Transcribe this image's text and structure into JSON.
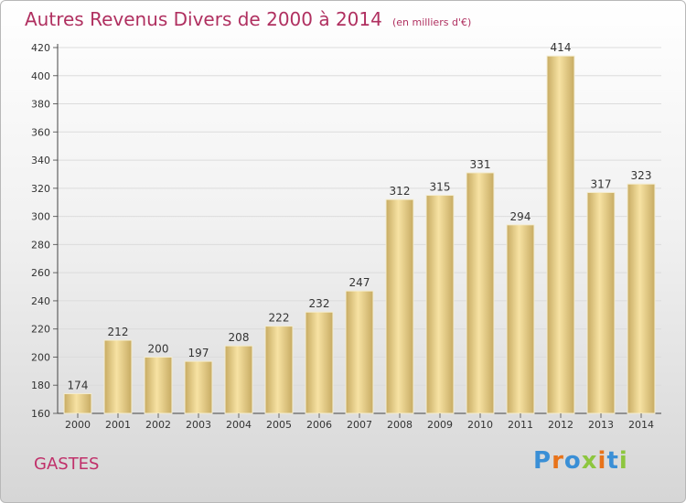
{
  "title": "Autres Revenus Divers de 2000 à 2014",
  "subtitle": "(en milliers d'€)",
  "place": "GASTES",
  "logo": {
    "text": "Proxiti",
    "colors": [
      "#3a8fd6",
      "#e8731a",
      "#3a8fd6",
      "#8dc63f",
      "#e8731a",
      "#3a8fd6",
      "#8dc63f"
    ]
  },
  "colors": {
    "bar_light": "#f7e2a3",
    "bar_dark": "#c7ab62",
    "bar_edge": "#f4edd2",
    "title": "#b03060"
  },
  "chart_data": {
    "type": "bar",
    "categories": [
      "2000",
      "2001",
      "2002",
      "2003",
      "2004",
      "2005",
      "2006",
      "2007",
      "2008",
      "2009",
      "2010",
      "2011",
      "2012",
      "2013",
      "2014"
    ],
    "values": [
      174,
      212,
      200,
      197,
      208,
      222,
      232,
      247,
      312,
      315,
      331,
      294,
      414,
      317,
      323
    ],
    "ylim": [
      160,
      420
    ],
    "yticks": [
      160,
      180,
      200,
      220,
      240,
      260,
      280,
      300,
      320,
      340,
      360,
      380,
      400,
      420
    ],
    "grid": true,
    "data_labels": true
  }
}
